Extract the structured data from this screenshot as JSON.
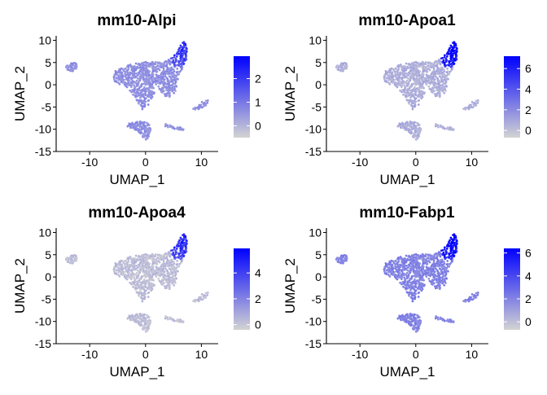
{
  "chart_data": [
    {
      "type": "scatter",
      "title": "mm10-Alpi",
      "xlabel": "UMAP_1",
      "ylabel": "UMAP_2",
      "xlim": [
        -16,
        13
      ],
      "ylim": [
        -15,
        11
      ],
      "xticks": [
        "-10",
        "0",
        "10"
      ],
      "yticks": [
        "10",
        "5",
        "0",
        "-5",
        "-10",
        "-15"
      ],
      "colorbar": {
        "min": -0.5,
        "max": 2.95,
        "ticks": [
          "2",
          "1",
          "0"
        ],
        "tick_values": [
          2,
          1,
          0
        ]
      },
      "gradient": {
        "low": "#d3d3d3",
        "high": "#0000ff"
      },
      "level": {
        "base": 0.32,
        "hot": 0.6
      }
    },
    {
      "type": "scatter",
      "title": "mm10-Apoa1",
      "xlabel": "UMAP_1",
      "ylabel": "UMAP_2",
      "xlim": [
        -16,
        13
      ],
      "ylim": [
        -15,
        11
      ],
      "xticks": [
        "-10",
        "0",
        "10"
      ],
      "yticks": [
        "10",
        "5",
        "0",
        "-5",
        "-10",
        "-15"
      ],
      "colorbar": {
        "min": -0.7,
        "max": 7.2,
        "ticks": [
          "6",
          "4",
          "2",
          "0"
        ],
        "tick_values": [
          6,
          4,
          2,
          0
        ]
      },
      "gradient": {
        "low": "#d3d3d3",
        "high": "#0000ff"
      },
      "level": {
        "base": 0.17,
        "hot": 0.85
      }
    },
    {
      "type": "scatter",
      "title": "mm10-Apoa4",
      "xlabel": "UMAP_1",
      "ylabel": "UMAP_2",
      "xlim": [
        -16,
        13
      ],
      "ylim": [
        -15,
        11
      ],
      "xticks": [
        "-10",
        "0",
        "10"
      ],
      "yticks": [
        "10",
        "5",
        "0",
        "-5",
        "-10",
        "-15"
      ],
      "colorbar": {
        "min": -0.4,
        "max": 5.9,
        "ticks": [
          "4",
          "2",
          "0"
        ],
        "tick_values": [
          4,
          2,
          0
        ]
      },
      "gradient": {
        "low": "#d3d3d3",
        "high": "#0000ff"
      },
      "level": {
        "base": 0.1,
        "hot": 0.65
      }
    },
    {
      "type": "scatter",
      "title": "mm10-Fabp1",
      "xlabel": "UMAP_1",
      "ylabel": "UMAP_2",
      "xlim": [
        -16,
        13
      ],
      "ylim": [
        -15,
        11
      ],
      "xticks": [
        "-10",
        "0",
        "10"
      ],
      "yticks": [
        "10",
        "5",
        "0",
        "-5",
        "-10",
        "-15"
      ],
      "colorbar": {
        "min": -0.7,
        "max": 6.4,
        "ticks": [
          "6",
          "4",
          "2",
          "0"
        ],
        "tick_values": [
          6,
          4,
          2,
          0
        ]
      },
      "gradient": {
        "low": "#d3d3d3",
        "high": "#0000ff"
      },
      "level": {
        "base": 0.38,
        "hot": 0.85
      }
    }
  ]
}
